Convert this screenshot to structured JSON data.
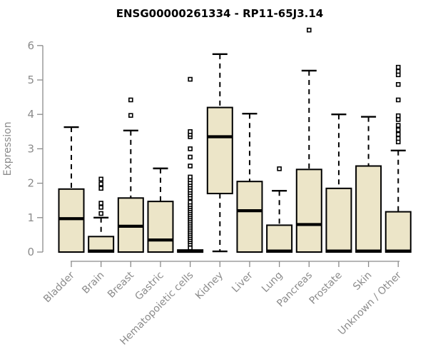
{
  "title": "ENSG00000261334 - RP11-65J3.14",
  "chart_data": {
    "type": "boxplot",
    "title": "ENSG00000261334 - RP11-65J3.14",
    "xlabel": "",
    "ylabel": "Expression",
    "ylim": [
      0,
      6
    ],
    "yticks": [
      0,
      1,
      2,
      3,
      4,
      5,
      6
    ],
    "grid": false,
    "legend": "none",
    "colors": {
      "box_fill": "#ECE5C8",
      "box_stroke": "#000000",
      "axis": "#8B8B8B",
      "tick_label": "#8B8B8B",
      "title": "#000000"
    },
    "categories": [
      "Bladder",
      "Brain",
      "Breast",
      "Gastric",
      "Hematopoietic cells",
      "Kidney",
      "Liver",
      "Lung",
      "Pancreas",
      "Prostate",
      "Skin",
      "Unknown / Other"
    ],
    "boxes": [
      {
        "label": "Bladder",
        "q1": 0,
        "median": 0.97,
        "q3": 1.83,
        "whisker_low": 0,
        "whisker_high": 3.63,
        "outliers": []
      },
      {
        "label": "Brain",
        "q1": 0,
        "median": 0.03,
        "q3": 0.45,
        "whisker_low": 0,
        "whisker_high": 1.0,
        "outliers": [
          1.12,
          1.3,
          1.42,
          1.85,
          1.98,
          2.12
        ]
      },
      {
        "label": "Breast",
        "q1": 0,
        "median": 0.75,
        "q3": 1.57,
        "whisker_low": 0,
        "whisker_high": 3.53,
        "outliers": [
          3.97,
          4.42
        ]
      },
      {
        "label": "Gastric",
        "q1": 0,
        "median": 0.35,
        "q3": 1.47,
        "whisker_low": 0,
        "whisker_high": 2.43,
        "outliers": []
      },
      {
        "label": "Hematopoietic cells",
        "q1": 0,
        "median": 0.02,
        "q3": 0.06,
        "whisker_low": 0,
        "whisker_high": 0.06,
        "outliers": [
          0.12,
          0.23,
          0.3,
          0.36,
          0.42,
          0.48,
          0.54,
          0.6,
          0.66,
          0.72,
          0.78,
          0.84,
          0.9,
          0.96,
          1.02,
          1.08,
          1.14,
          1.2,
          1.26,
          1.32,
          1.38,
          1.45,
          1.58,
          1.66,
          1.73,
          1.8,
          1.88,
          1.95,
          2.02,
          2.1,
          2.18,
          2.5,
          2.76,
          3.0,
          3.35,
          3.42,
          3.5,
          5.02
        ]
      },
      {
        "label": "Kidney",
        "q1": 1.7,
        "median": 3.35,
        "q3": 4.2,
        "whisker_low": 0.02,
        "whisker_high": 5.75,
        "outliers": []
      },
      {
        "label": "Liver",
        "q1": 0,
        "median": 1.2,
        "q3": 2.05,
        "whisker_low": 0,
        "whisker_high": 4.02,
        "outliers": []
      },
      {
        "label": "Lung",
        "q1": 0,
        "median": 0.03,
        "q3": 0.78,
        "whisker_low": 0,
        "whisker_high": 1.78,
        "outliers": [
          2.42
        ]
      },
      {
        "label": "Pancreas",
        "q1": 0,
        "median": 0.8,
        "q3": 2.4,
        "whisker_low": 0,
        "whisker_high": 5.27,
        "outliers": [
          6.45
        ]
      },
      {
        "label": "Prostate",
        "q1": 0,
        "median": 0.03,
        "q3": 1.85,
        "whisker_low": 0,
        "whisker_high": 4.0,
        "outliers": []
      },
      {
        "label": "Skin",
        "q1": 0,
        "median": 0.03,
        "q3": 2.5,
        "whisker_low": 0,
        "whisker_high": 3.93,
        "outliers": []
      },
      {
        "label": "Unknown / Other",
        "q1": 0,
        "median": 0.03,
        "q3": 1.17,
        "whisker_low": 0,
        "whisker_high": 2.95,
        "outliers": [
          3.2,
          3.3,
          3.42,
          3.55,
          3.68,
          3.85,
          3.96,
          4.42,
          4.87,
          5.15,
          5.25,
          5.37
        ]
      }
    ]
  }
}
